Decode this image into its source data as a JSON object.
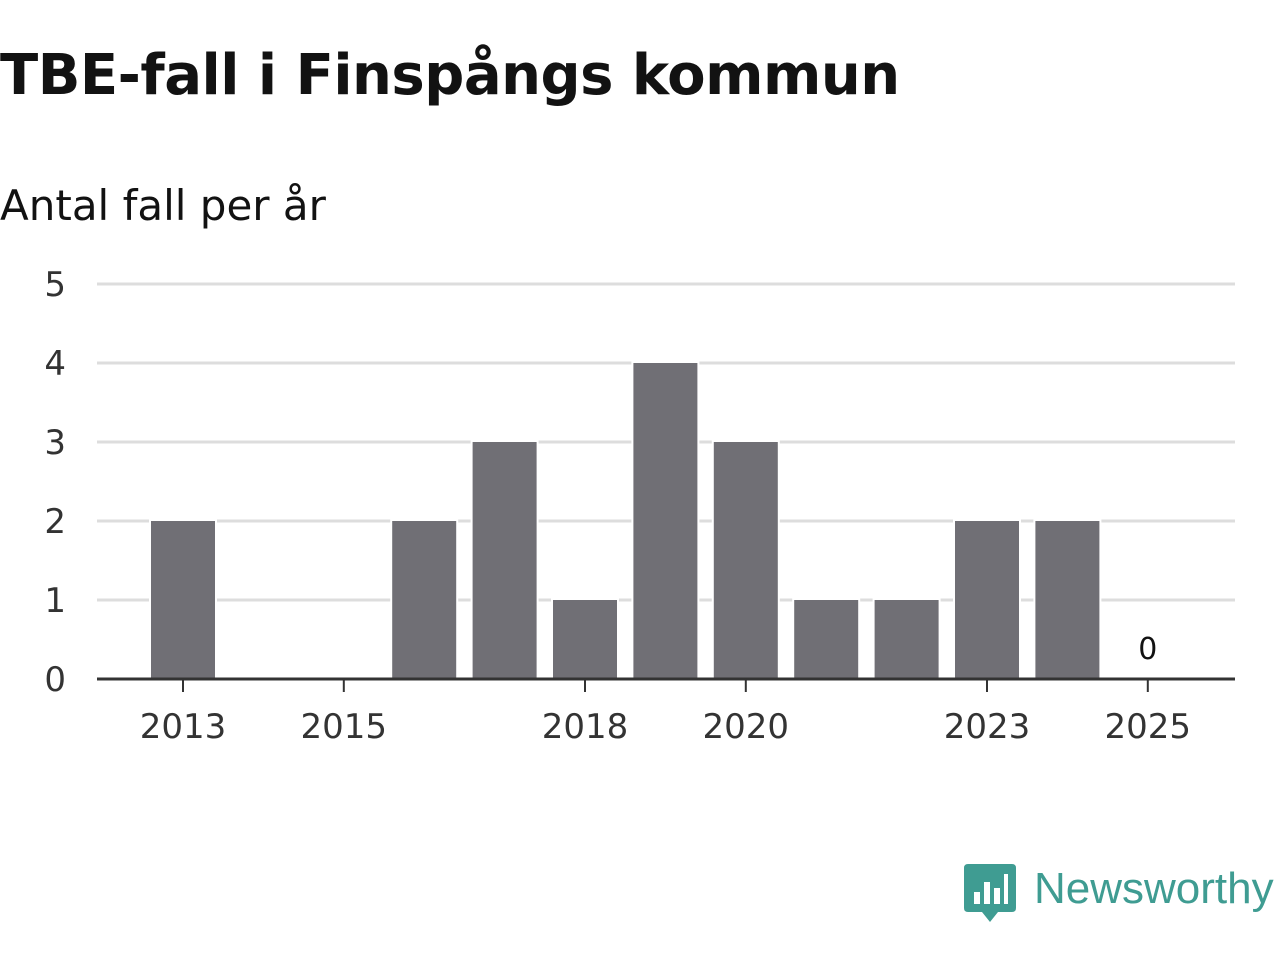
{
  "header": {
    "title": "TBE-fall i Finspångs kommun",
    "subtitle": "Antal fall per år"
  },
  "chart_data": {
    "type": "bar",
    "title": "TBE-fall i Finspångs kommun",
    "subtitle": "Antal fall per år",
    "xlabel": "",
    "ylabel": "",
    "categories": [
      "2013",
      "2014",
      "2015",
      "2016",
      "2017",
      "2018",
      "2019",
      "2020",
      "2021",
      "2022",
      "2023",
      "2024",
      "2025"
    ],
    "values": [
      2,
      0,
      0,
      2,
      3,
      1,
      4,
      3,
      1,
      1,
      2,
      2,
      0
    ],
    "x_tick_labels": [
      "2013",
      "2015",
      "2018",
      "2020",
      "2023",
      "2025"
    ],
    "y_ticks": [
      0,
      1,
      2,
      3,
      4,
      5
    ],
    "ylim": [
      0,
      5
    ],
    "grid": true,
    "annotations": [
      {
        "category": "2025",
        "text": "0"
      }
    ],
    "bar_color": "#706f75",
    "grid_color": "#dddddd",
    "axis_color": "#333333"
  },
  "branding": {
    "name": "Newsworthy",
    "icon": "newsworthy-logo-icon",
    "color": "#3f9c92"
  }
}
